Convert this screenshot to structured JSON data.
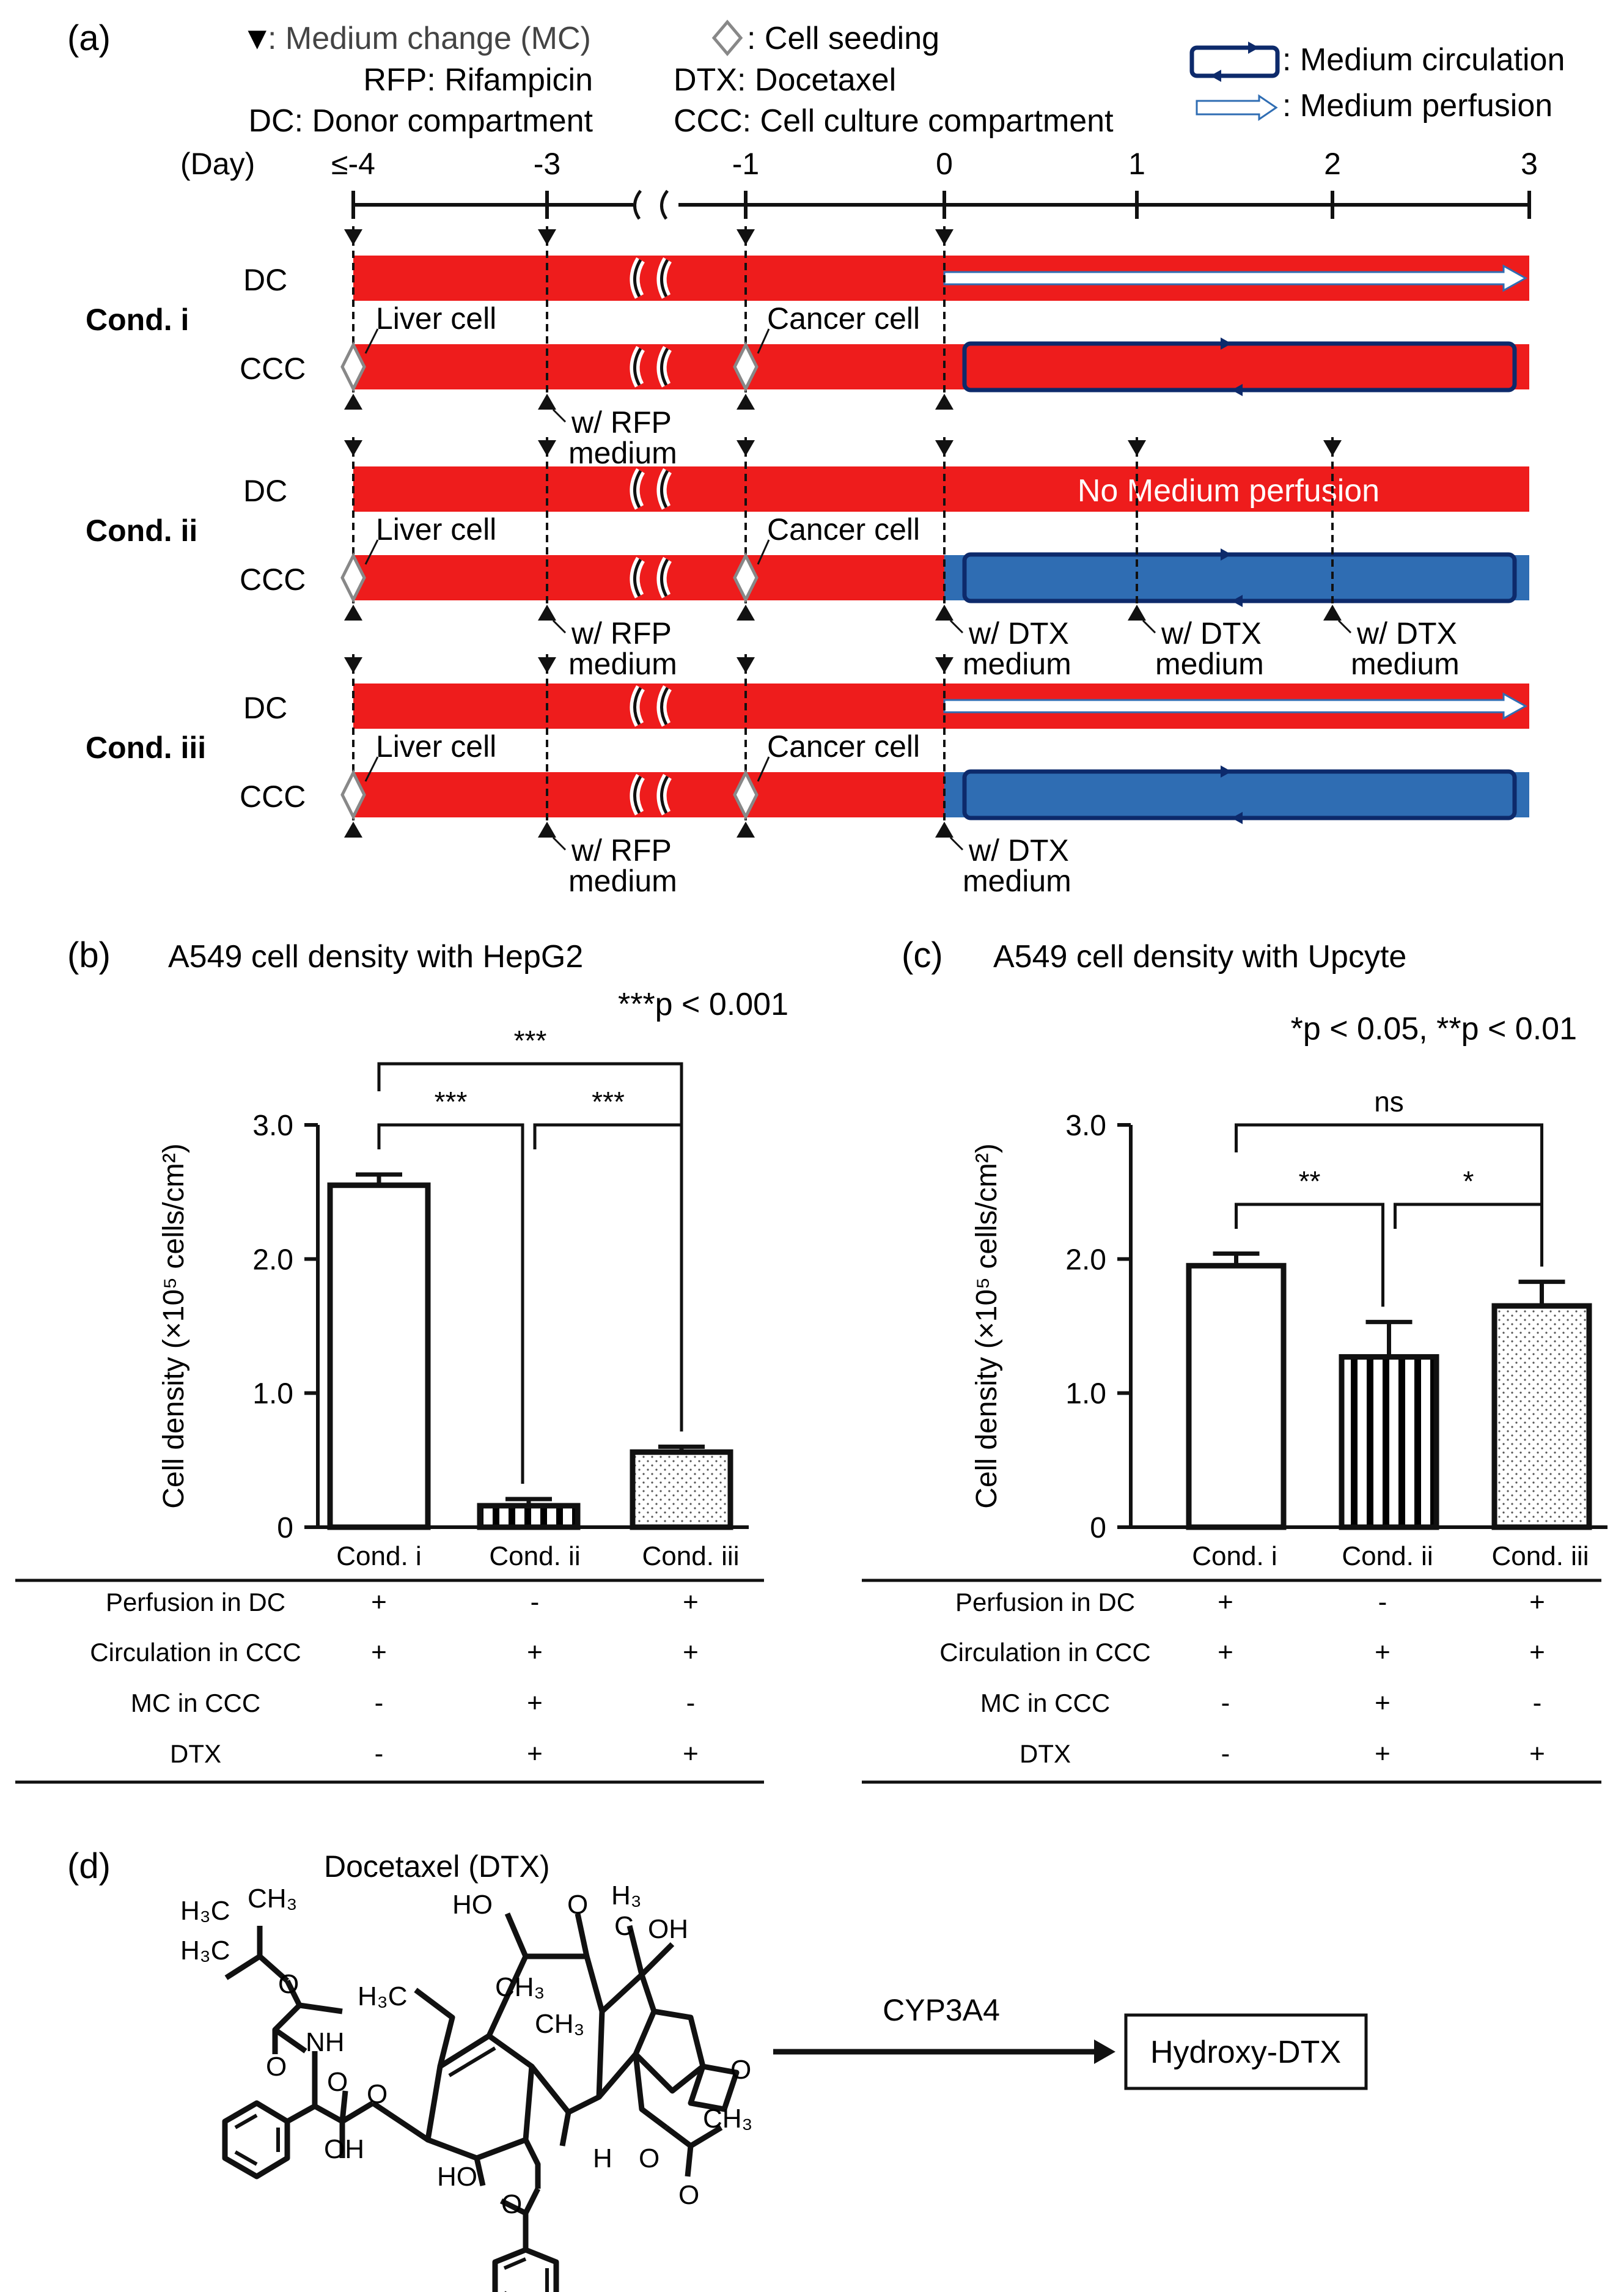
{
  "panel_a": {
    "label": "(a)",
    "legend": {
      "mc_symbol": "▼",
      "mc": ": Medium change (MC)",
      "rfp": "RFP: Rifampicin",
      "dc": "DC: Donor compartment",
      "seeding": ": Cell seeding",
      "dtx": "DTX: Docetaxel",
      "ccc": "CCC: Cell culture compartment",
      "circulation": ": Medium circulation",
      "perfusion": ": Medium perfusion"
    },
    "timeline": {
      "unit": "(Day)",
      "ticks": [
        {
          "label": "≤-4",
          "day": -4
        },
        {
          "label": "-3",
          "day": -3
        },
        {
          "label": "-1",
          "day": -1
        },
        {
          "label": "0",
          "day": 0
        },
        {
          "label": "1",
          "day": 1
        },
        {
          "label": "2",
          "day": 2
        },
        {
          "label": "3",
          "day": 3
        }
      ]
    },
    "conditions": [
      {
        "name": "Cond. i",
        "dc": "DC",
        "ccc": "CCC",
        "liver": "Liver cell",
        "cancer": "Cancer cell",
        "rfp1": "w/ RFP",
        "rfp2": "medium",
        "perfusion": true,
        "dtx": false,
        "extra_mc": false,
        "dtx_notes": []
      },
      {
        "name": "Cond. ii",
        "dc": "DC",
        "ccc": "CCC",
        "liver": "Liver cell",
        "cancer": "Cancer cell",
        "rfp1": "w/ RFP",
        "rfp2": "medium",
        "perfusion": false,
        "no_perfusion": "No Medium perfusion",
        "dtx": true,
        "extra_mc": true,
        "dtx_notes": [
          {
            "l1": "w/ DTX",
            "l2": "medium"
          },
          {
            "l1": "w/ DTX",
            "l2": "medium"
          },
          {
            "l1": "w/ DTX",
            "l2": "medium"
          }
        ]
      },
      {
        "name": "Cond. iii",
        "dc": "DC",
        "ccc": "CCC",
        "liver": "Liver cell",
        "cancer": "Cancer cell",
        "rfp1": "w/ RFP",
        "rfp2": "medium",
        "perfusion": true,
        "dtx": true,
        "extra_mc": false,
        "dtx_notes": [
          {
            "l1": "w/ DTX",
            "l2": "medium"
          }
        ]
      }
    ],
    "colors": {
      "medium": "#ee1c1c",
      "dtx_medium": "#2f6db3",
      "circulation": "#0d2a6b"
    }
  },
  "chart_data": [
    {
      "type": "bar",
      "label": "(b)",
      "title": "A549 cell density with HepG2",
      "pnote": "***p < 0.001",
      "categories": [
        "Cond. i",
        "Cond. ii",
        "Cond. iii"
      ],
      "values": [
        2.55,
        0.16,
        0.56
      ],
      "errors": [
        0.08,
        0.05,
        0.04
      ],
      "fills": [
        "open",
        "vertical-stripes",
        "dots"
      ],
      "ylabel": "Cell density (×10⁵ cells/cm²)",
      "ylim": [
        0,
        3.0
      ],
      "yticks": [
        {
          "v": 0,
          "t": "0"
        },
        {
          "v": 1,
          "t": "1.0"
        },
        {
          "v": 2,
          "t": "2.0"
        },
        {
          "v": 3,
          "t": "3.0"
        }
      ],
      "significance": [
        {
          "from": 0,
          "to": 2,
          "label": "***"
        },
        {
          "from": 0,
          "to": 1,
          "label": "***"
        },
        {
          "from": 1,
          "to": 2,
          "label": "***"
        }
      ],
      "table": {
        "rows": [
          "Perfusion in DC",
          "Circulation in CCC",
          "MC in CCC",
          "DTX"
        ],
        "cells": [
          [
            "+",
            "-",
            "+"
          ],
          [
            "+",
            "+",
            "+"
          ],
          [
            "-",
            "+",
            "-"
          ],
          [
            "-",
            "+",
            "+"
          ]
        ]
      }
    },
    {
      "type": "bar",
      "label": "(c)",
      "title": "A549 cell density with Upcyte",
      "pnote": "*p < 0.05, **p < 0.01",
      "categories": [
        "Cond. i",
        "Cond. ii",
        "Cond. iii"
      ],
      "values": [
        1.95,
        1.27,
        1.65
      ],
      "errors": [
        0.09,
        0.26,
        0.18
      ],
      "fills": [
        "open",
        "vertical-stripes",
        "dots"
      ],
      "ylabel": "Cell density (×10⁵ cells/cm²)",
      "ylim": [
        0,
        3.0
      ],
      "yticks": [
        {
          "v": 0,
          "t": "0"
        },
        {
          "v": 1,
          "t": "1.0"
        },
        {
          "v": 2,
          "t": "2.0"
        },
        {
          "v": 3,
          "t": "3.0"
        }
      ],
      "significance": [
        {
          "from": 0,
          "to": 2,
          "label": "ns"
        },
        {
          "from": 0,
          "to": 1,
          "label": "**"
        },
        {
          "from": 1,
          "to": 2,
          "label": "*"
        }
      ],
      "table": {
        "rows": [
          "Perfusion in DC",
          "Circulation in CCC",
          "MC in CCC",
          "DTX"
        ],
        "cells": [
          [
            "+",
            "-",
            "+"
          ],
          [
            "+",
            "+",
            "+"
          ],
          [
            "-",
            "+",
            "-"
          ],
          [
            "-",
            "+",
            "+"
          ]
        ]
      }
    }
  ],
  "panel_d": {
    "label": "(d)",
    "molecule": "Docetaxel (DTX)",
    "enzyme": "CYP3A4",
    "product": "Hydroxy-DTX",
    "atoms": {
      "h3c": "H₃C",
      "ch3": "CH₃",
      "o": "O",
      "nh": "NH",
      "ho": "HO",
      "oh": "OH",
      "h3": "H₃",
      "c": "C",
      "h": "H"
    }
  }
}
